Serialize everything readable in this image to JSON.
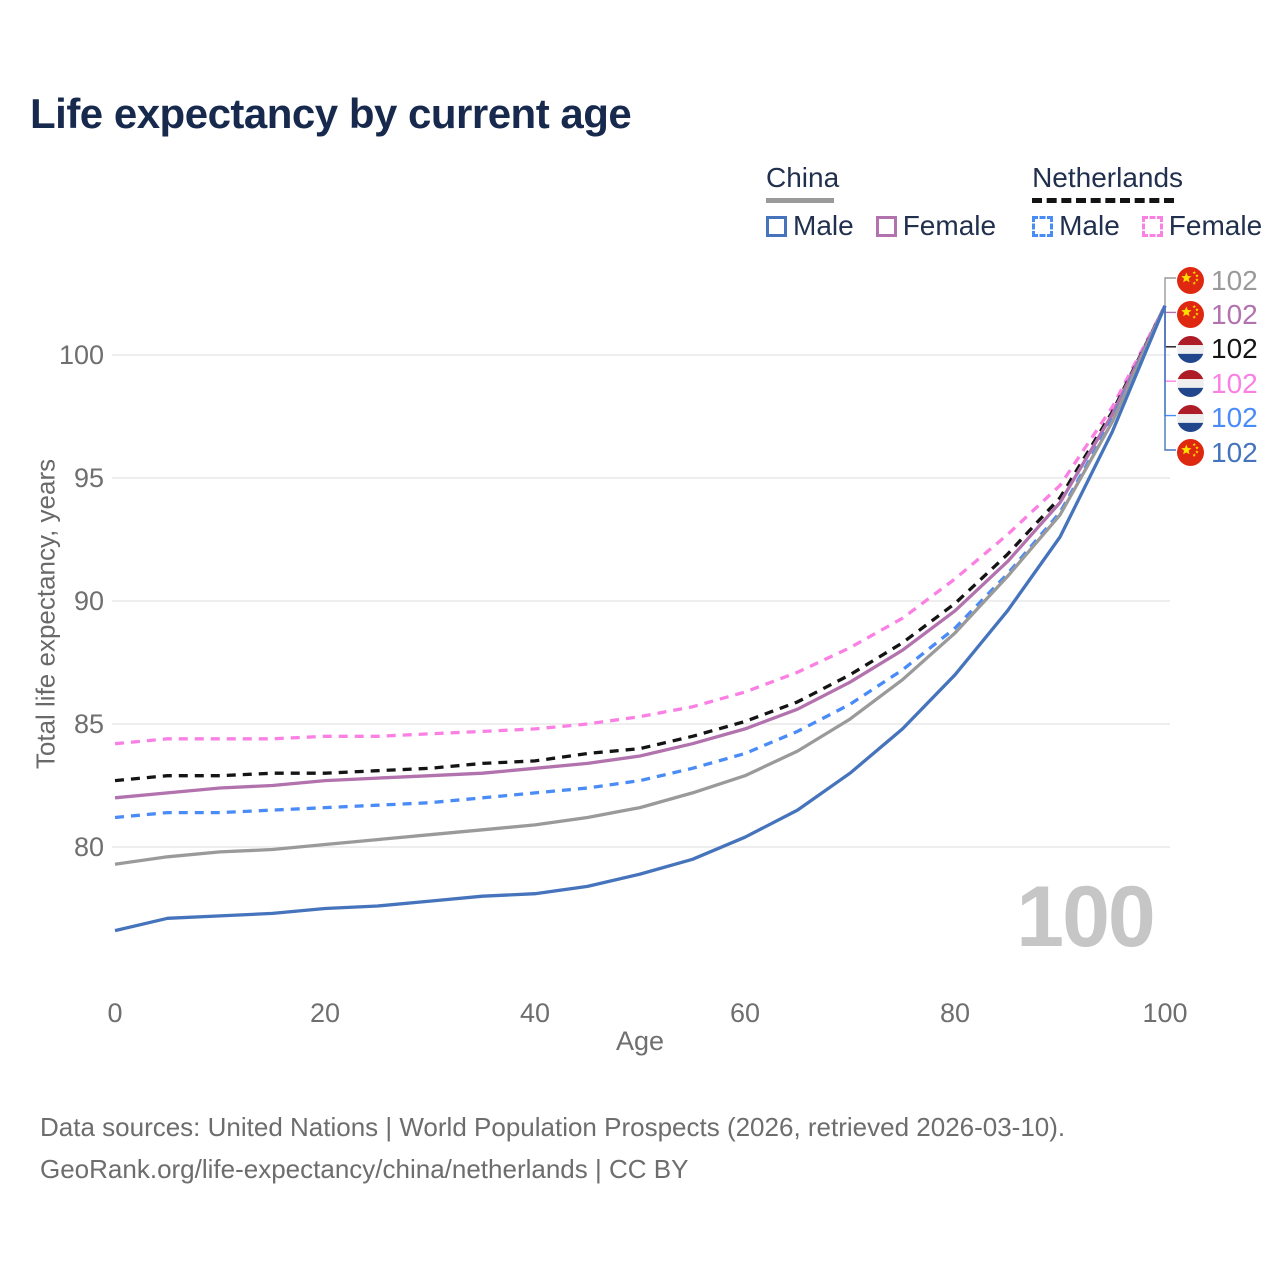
{
  "title": "Life expectancy by current age",
  "legend": {
    "groups": [
      {
        "label": "China",
        "line_style": "solid",
        "underline_color": "#9a9a9a",
        "items": [
          {
            "label": "Male",
            "color": "#4674bc",
            "style": "solid"
          },
          {
            "label": "Female",
            "color": "#b272ae",
            "style": "solid"
          }
        ]
      },
      {
        "label": "Netherlands",
        "line_style": "dashed",
        "underline_color": "#141414",
        "items": [
          {
            "label": "Male",
            "color": "#4a8cf7",
            "style": "dashed"
          },
          {
            "label": "Female",
            "color": "#fb80e4",
            "style": "dashed"
          }
        ]
      }
    ]
  },
  "watermark_age": "100",
  "footer": {
    "line1": "Data sources: United Nations | World Population Prospects (2026, retrieved 2026-03-10).",
    "line2": "GeoRank.org/life-expectancy/china/netherlands | CC BY"
  },
  "chart_data": {
    "type": "line",
    "title": "Life expectancy by current age",
    "xlabel": "Age",
    "ylabel": "Total life expectancy, years",
    "x_ticks": [
      0,
      20,
      40,
      60,
      80,
      100
    ],
    "y_ticks": [
      80,
      85,
      90,
      95,
      100
    ],
    "xlim": [
      0,
      100
    ],
    "ylim": [
      76,
      103
    ],
    "grid": "horizontal",
    "ages": [
      0,
      5,
      10,
      15,
      20,
      25,
      30,
      35,
      40,
      45,
      50,
      55,
      60,
      65,
      70,
      75,
      80,
      85,
      90,
      95,
      100
    ],
    "series": [
      {
        "name": "Netherlands Female",
        "country": "Netherlands",
        "sex": "Female",
        "color": "#fb80e4",
        "dash": "dashed",
        "values": [
          84.2,
          84.4,
          84.4,
          84.4,
          84.5,
          84.5,
          84.6,
          84.7,
          84.8,
          85.0,
          85.3,
          85.7,
          86.3,
          87.1,
          88.1,
          89.3,
          90.9,
          92.7,
          94.7,
          97.9,
          102
        ]
      },
      {
        "name": "Netherlands",
        "country": "Netherlands",
        "sex": "Both",
        "color": "#141414",
        "dash": "dashed",
        "values": [
          82.7,
          82.9,
          82.9,
          83.0,
          83.0,
          83.1,
          83.2,
          83.4,
          83.5,
          83.8,
          84.0,
          84.5,
          85.1,
          85.9,
          87.0,
          88.3,
          89.9,
          91.9,
          94.2,
          97.7,
          102
        ]
      },
      {
        "name": "China Female",
        "country": "China",
        "sex": "Female",
        "color": "#b272ae",
        "dash": "solid",
        "values": [
          82.0,
          82.2,
          82.4,
          82.5,
          82.7,
          82.8,
          82.9,
          83.0,
          83.2,
          83.4,
          83.7,
          84.2,
          84.8,
          85.6,
          86.7,
          88.0,
          89.6,
          91.6,
          94.0,
          97.6,
          102
        ]
      },
      {
        "name": "Netherlands Male",
        "country": "Netherlands",
        "sex": "Male",
        "color": "#4a8cf7",
        "dash": "dashed",
        "values": [
          81.2,
          81.4,
          81.4,
          81.5,
          81.6,
          81.7,
          81.8,
          82.0,
          82.2,
          82.4,
          82.7,
          83.2,
          83.8,
          84.7,
          85.8,
          87.2,
          88.9,
          91.1,
          93.6,
          97.4,
          102
        ]
      },
      {
        "name": "China",
        "country": "China",
        "sex": "Both",
        "color": "#9a9a9a",
        "dash": "solid",
        "values": [
          79.3,
          79.6,
          79.8,
          79.9,
          80.1,
          80.3,
          80.5,
          80.7,
          80.9,
          81.2,
          81.6,
          82.2,
          82.9,
          83.9,
          85.2,
          86.8,
          88.7,
          91.0,
          93.5,
          97.3,
          102
        ]
      },
      {
        "name": "China Male",
        "country": "China",
        "sex": "Male",
        "color": "#4674bc",
        "dash": "solid",
        "values": [
          76.6,
          77.1,
          77.2,
          77.3,
          77.5,
          77.6,
          77.8,
          78.0,
          78.1,
          78.4,
          78.9,
          79.5,
          80.4,
          81.5,
          83.0,
          84.8,
          87.0,
          89.6,
          92.6,
          96.9,
          102
        ]
      }
    ],
    "end_labels": [
      {
        "flag": "china",
        "series": "China",
        "value": "102",
        "color": "#9a9a9a"
      },
      {
        "flag": "china",
        "series": "China Female",
        "value": "102",
        "color": "#b272ae"
      },
      {
        "flag": "netherlands",
        "series": "Netherlands",
        "value": "102",
        "color": "#141414"
      },
      {
        "flag": "netherlands",
        "series": "Netherlands Female",
        "value": "102",
        "color": "#fb80e4"
      },
      {
        "flag": "netherlands",
        "series": "Netherlands Male",
        "value": "102",
        "color": "#4a8cf7"
      },
      {
        "flag": "china",
        "series": "China Male",
        "value": "102",
        "color": "#4674bc"
      }
    ],
    "legend_position": "top-right"
  }
}
